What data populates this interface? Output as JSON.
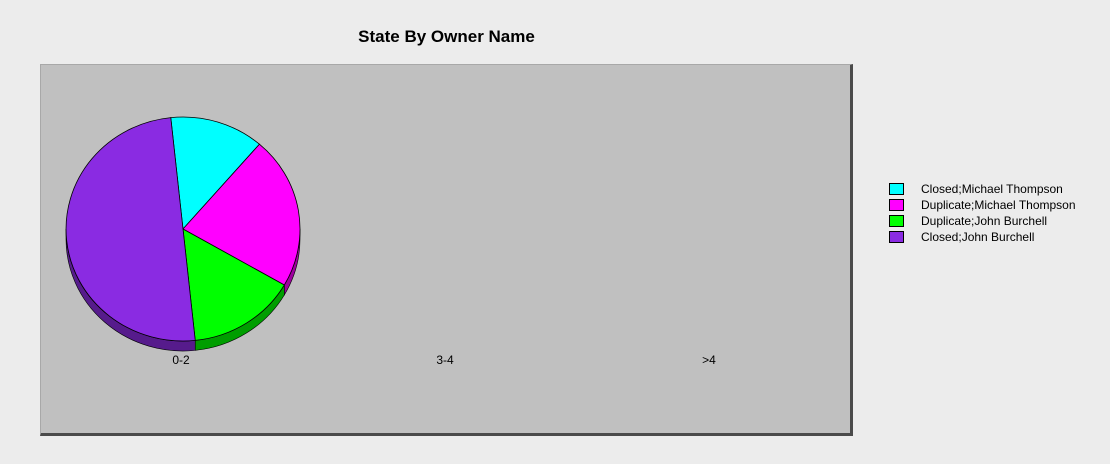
{
  "chart_data": {
    "type": "pie",
    "title": "State By Owner Name",
    "categories": [
      "0-2",
      "3-4",
      ">4"
    ],
    "series": [
      {
        "name": "Closed;Michael Thompson",
        "color": "#00ffff",
        "values": [
          13,
          0,
          0
        ]
      },
      {
        "name": "Duplicate;Michael Thompson",
        "color": "#ff00ff",
        "values": [
          22,
          0,
          0
        ]
      },
      {
        "name": "Duplicate;John Burchell",
        "color": "#00ff00",
        "values": [
          15,
          0,
          0
        ]
      },
      {
        "name": "Closed;John Burchell",
        "color": "#8a2be2",
        "values": [
          50,
          0,
          0
        ]
      }
    ],
    "legend_position": "right",
    "style": "3d",
    "plot_background": "#c0c0c0"
  }
}
